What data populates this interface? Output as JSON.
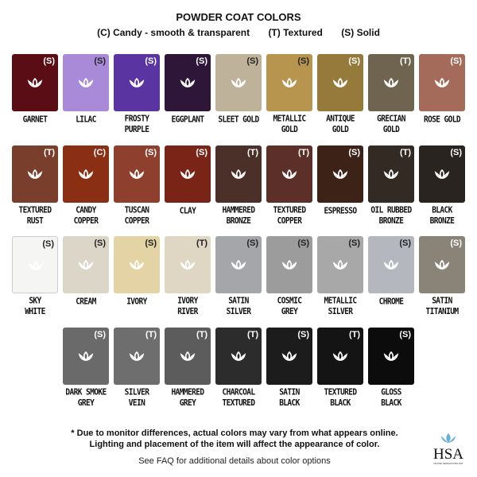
{
  "header": {
    "title": "POWDER COAT COLORS",
    "legend": [
      "(C) Candy - smooth & transparent",
      "(T) Textured",
      "(S) Solid"
    ]
  },
  "rows": [
    [
      {
        "name": "GARNET",
        "type": "(S)",
        "color": "#5a0d14"
      },
      {
        "name": "LILAC",
        "type": "(S)",
        "color": "#a98ad8"
      },
      {
        "name": "FROSTY\nPURPLE",
        "type": "(S)",
        "color": "#5a34a0"
      },
      {
        "name": "EGGPLANT",
        "type": "(S)",
        "color": "#2e1638"
      },
      {
        "name": "SLEET GOLD",
        "type": "(S)",
        "color": "#bfb29a"
      },
      {
        "name": "METALLIC\nGOLD",
        "type": "(S)",
        "color": "#b8954e"
      },
      {
        "name": "ANTIQUE\nGOLD",
        "type": "(S)",
        "color": "#957a3c"
      },
      {
        "name": "GRECIAN\nGOLD",
        "type": "(T)",
        "color": "#6e6450"
      },
      {
        "name": "ROSE GOLD",
        "type": "(S)",
        "color": "#a46a5a"
      }
    ],
    [
      {
        "name": "TEXTURED\nRUST",
        "type": "(T)",
        "color": "#7a3e2c"
      },
      {
        "name": "CANDY\nCOPPER",
        "type": "(C)",
        "color": "#8a2f14"
      },
      {
        "name": "TUSCAN\nCOPPER",
        "type": "(S)",
        "color": "#8f3f2d"
      },
      {
        "name": "CLAY",
        "type": "(S)",
        "color": "#7a2418"
      },
      {
        "name": "HAMMERED\nBRONZE",
        "type": "(T)",
        "color": "#4a3028"
      },
      {
        "name": "TEXTURED\nCOPPER",
        "type": "(T)",
        "color": "#5c3028"
      },
      {
        "name": "ESPRESSO",
        "type": "(S)",
        "color": "#3d2218"
      },
      {
        "name": "OIL RUBBED\nBRONZE",
        "type": "(T)",
        "color": "#332a24"
      },
      {
        "name": "BLACK\nBRONZE",
        "type": "(S)",
        "color": "#2a2420"
      }
    ],
    [
      {
        "name": "SKY\nWHITE",
        "type": "(S)",
        "color": "#f5f5f3"
      },
      {
        "name": "CREAM",
        "type": "(S)",
        "color": "#dcd6c8"
      },
      {
        "name": "IVORY",
        "type": "(S)",
        "color": "#e4d3a4"
      },
      {
        "name": "IVORY\nRIVER",
        "type": "(T)",
        "color": "#e0d6c4"
      },
      {
        "name": "SATIN\nSILVER",
        "type": "(S)",
        "color": "#a4a6aa"
      },
      {
        "name": "COSMIC\nGREY",
        "type": "(S)",
        "color": "#9c9c9c"
      },
      {
        "name": "METALLIC\nSILVER",
        "type": "(S)",
        "color": "#a8a8a8"
      },
      {
        "name": "CHROME",
        "type": "(S)",
        "color": "#b4b8be"
      },
      {
        "name": "SATIN\nTITANIUM",
        "type": "(S)",
        "color": "#8a8478"
      }
    ],
    [
      {
        "name": "DARK SMOKE\nGREY",
        "type": "(S)",
        "color": "#6a6a6a"
      },
      {
        "name": "SILVER\nVEIN",
        "type": "(T)",
        "color": "#6e6e6e"
      },
      {
        "name": "HAMMERED\nGREY",
        "type": "(T)",
        "color": "#5c5c5c"
      },
      {
        "name": "CHARCOAL\nTEXTURED",
        "type": "(T)",
        "color": "#2c2c2c"
      },
      {
        "name": "SATIN\nBLACK",
        "type": "(S)",
        "color": "#1c1c1c"
      },
      {
        "name": "TEXTURED\nBLACK",
        "type": "(T)",
        "color": "#141414"
      },
      {
        "name": "GLOSS\nBLACK",
        "type": "(S)",
        "color": "#0c0c0c"
      }
    ]
  ],
  "footer": {
    "note_line1": "* Due to monitor differences, actual colors may vary from what appears online.",
    "note_line2": "Lighting and placement of the item will affect the appearance of color.",
    "faq": "See FAQ for additional details about color options",
    "logo_text": "HSA",
    "logo_sub": "HOUSE SENSATIONS ART",
    "logo_color": "#6aaed6"
  }
}
